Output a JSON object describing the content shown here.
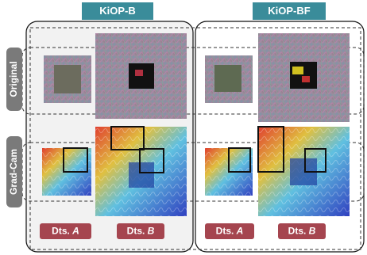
{
  "panels": [
    {
      "title": "KiOP-B",
      "labels": [
        {
          "prefix": "Dts.",
          "letter": "A"
        },
        {
          "prefix": "Dts.",
          "letter": "B"
        }
      ]
    },
    {
      "title": "KiOP-BF",
      "labels": [
        {
          "prefix": "Dts.",
          "letter": "A"
        },
        {
          "prefix": "Dts.",
          "letter": "B"
        }
      ]
    }
  ],
  "row_labels": [
    "Original",
    "Grad-Cam"
  ]
}
